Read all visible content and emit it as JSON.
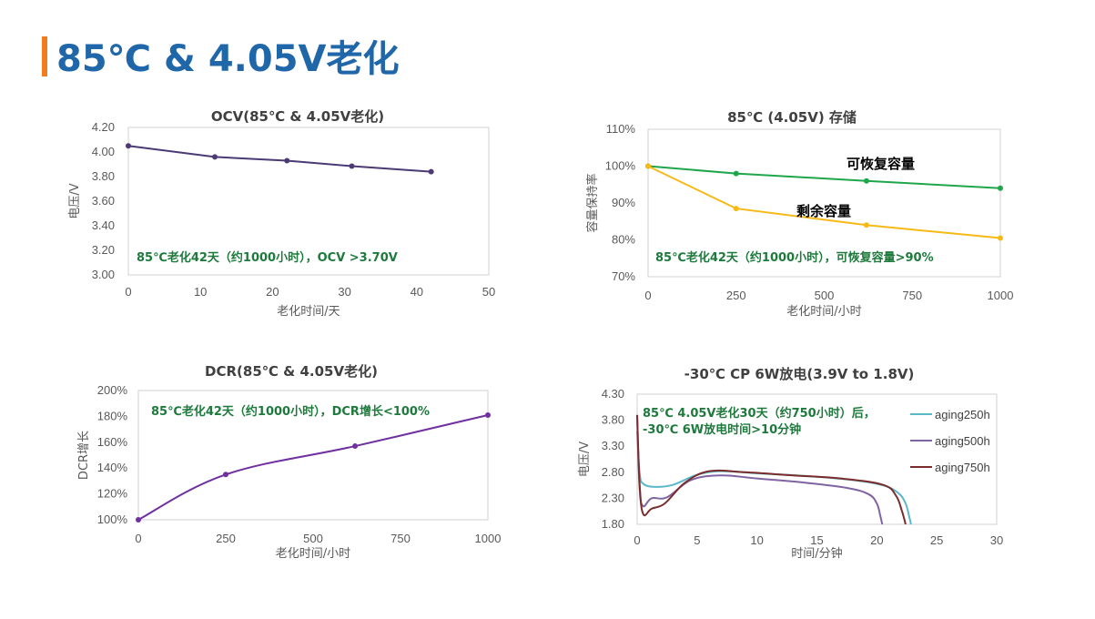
{
  "page": {
    "title": "85℃ & 4.05V老化"
  },
  "chart_data": [
    {
      "id": "ocv",
      "type": "line",
      "title": "OCV(85℃ & 4.05V老化)",
      "xlabel": "老化时间/天",
      "ylabel": "电压/V",
      "xlim": [
        0,
        50
      ],
      "ylim": [
        3.0,
        4.2
      ],
      "xticks": [
        "0",
        "10",
        "20",
        "30",
        "40",
        "50"
      ],
      "yticks": [
        "3.00",
        "3.20",
        "3.40",
        "3.60",
        "3.80",
        "4.00",
        "4.20"
      ],
      "annotation": "85℃老化42天（约1000小时），OCV >3.70V",
      "series": [
        {
          "color": "#4b3a73",
          "x": [
            0,
            12,
            22,
            31,
            42
          ],
          "y": [
            4.05,
            3.96,
            3.93,
            3.885,
            3.84
          ]
        }
      ]
    },
    {
      "id": "storage",
      "type": "line",
      "title": "85℃ (4.05V) 存储",
      "xlabel": "老化时间/小时",
      "ylabel": "容量保持率",
      "xlim": [
        0,
        1000
      ],
      "ylim": [
        70,
        110
      ],
      "xticks": [
        "0",
        "250",
        "500",
        "750",
        "1000"
      ],
      "yticks": [
        "70%",
        "80%",
        "90%",
        "100%",
        "110%"
      ],
      "annotation": "85℃老化42天（约1000小时），可恢复容量>90%",
      "series": [
        {
          "name": "可恢复容量",
          "color": "#1fa64a",
          "x": [
            0,
            250,
            620,
            1000
          ],
          "y": [
            100,
            98,
            96,
            94
          ]
        },
        {
          "name": "剩余容量",
          "color": "#f7b916",
          "x": [
            0,
            250,
            620,
            1000
          ],
          "y": [
            100,
            88.5,
            84,
            80.5
          ]
        }
      ]
    },
    {
      "id": "dcr",
      "type": "line",
      "title": "DCR(85℃ & 4.05V老化)",
      "xlabel": "老化时间/小时",
      "ylabel": "DCR增长",
      "xlim": [
        0,
        1000
      ],
      "ylim": [
        100,
        200
      ],
      "xticks": [
        "0",
        "250",
        "500",
        "750",
        "1000"
      ],
      "yticks": [
        "100%",
        "120%",
        "140%",
        "160%",
        "180%",
        "200%"
      ],
      "annotation": "85℃老化42天（约1000小时），DCR增长<100%",
      "series": [
        {
          "color": "#7030a0",
          "x": [
            0,
            250,
            620,
            1000
          ],
          "y": [
            100,
            135,
            157,
            181
          ]
        }
      ]
    },
    {
      "id": "discharge",
      "type": "line",
      "title": "-30℃ CP 6W放电(3.9V to 1.8V)",
      "xlabel": "时间/分钟",
      "ylabel": "电压/V",
      "xlim": [
        0,
        30
      ],
      "ylim": [
        1.8,
        4.3
      ],
      "xticks": [
        "0",
        "5",
        "10",
        "15",
        "20",
        "25",
        "30"
      ],
      "yticks": [
        "1.80",
        "2.30",
        "2.80",
        "3.30",
        "3.80",
        "4.30"
      ],
      "annotation_lines": [
        "85℃ 4.05V老化30天（约750小时）后，",
        "-30℃ 6W放电时间>10分钟"
      ],
      "series": [
        {
          "name": "aging250h",
          "color": "#5bb8c9",
          "x": [
            0,
            0.2,
            0.5,
            1.5,
            3,
            5,
            7,
            10,
            14,
            18,
            20.5,
            21.8,
            22.4,
            22.7,
            22.85
          ],
          "y": [
            3.6,
            2.8,
            2.58,
            2.52,
            2.56,
            2.75,
            2.82,
            2.78,
            2.73,
            2.65,
            2.55,
            2.4,
            2.2,
            1.95,
            1.8
          ]
        },
        {
          "name": "aging500h",
          "color": "#8064a2",
          "x": [
            0,
            0.2,
            0.5,
            1.2,
            2.5,
            4.5,
            7,
            10,
            14,
            17.5,
            19.3,
            20.0,
            20.3,
            20.45
          ],
          "y": [
            3.9,
            2.5,
            2.15,
            2.3,
            2.32,
            2.65,
            2.74,
            2.68,
            2.6,
            2.5,
            2.38,
            2.2,
            1.95,
            1.8
          ]
        },
        {
          "name": "aging750h",
          "color": "#7b2c2c",
          "x": [
            0,
            0.2,
            0.5,
            1.2,
            2.3,
            4,
            6,
            9,
            13,
            17,
            20.5,
            21.6,
            22.1,
            22.4
          ],
          "y": [
            3.9,
            2.6,
            2.0,
            2.1,
            2.2,
            2.6,
            2.82,
            2.8,
            2.74,
            2.68,
            2.56,
            2.35,
            2.05,
            1.8
          ]
        }
      ]
    }
  ]
}
